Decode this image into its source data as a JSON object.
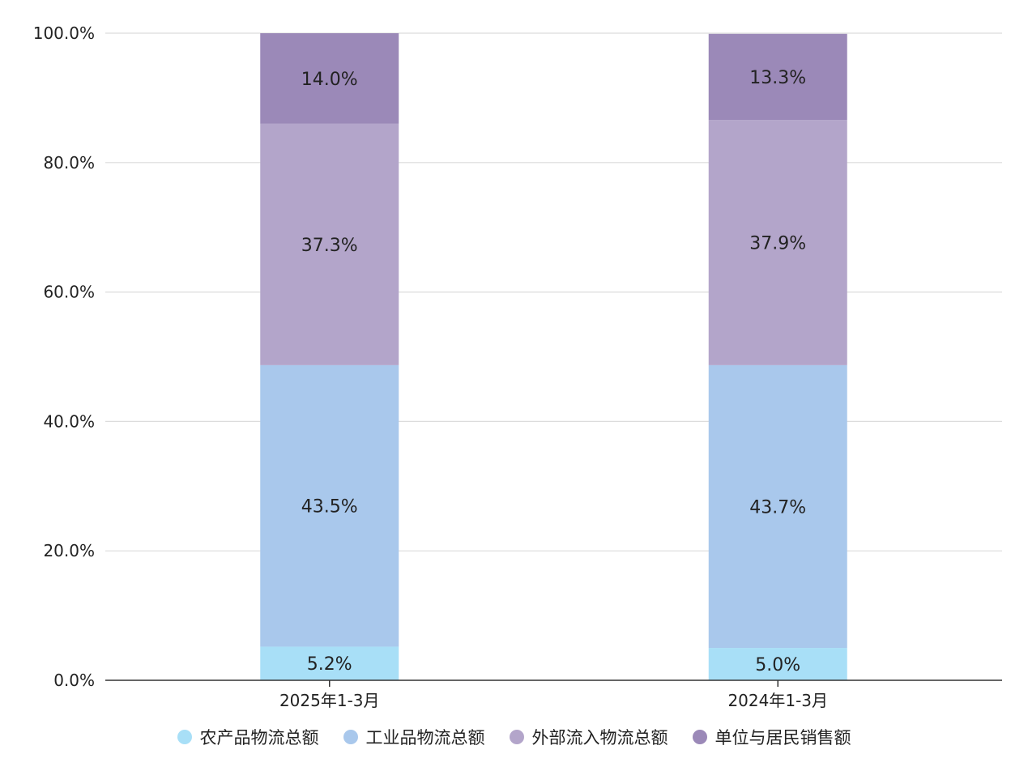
{
  "chart_data": {
    "type": "bar",
    "stacked": true,
    "categories": [
      "2025年1-3月",
      "2024年1-3月"
    ],
    "series": [
      {
        "name": "农产品物流总额",
        "values": [
          5.2,
          5.0
        ],
        "color": "#a8dff7"
      },
      {
        "name": "工业品物流总额",
        "values": [
          43.5,
          43.7
        ],
        "color": "#a9c8ec"
      },
      {
        "name": "外部流入物流总额",
        "values": [
          37.3,
          37.9
        ],
        "color": "#b3a5ca"
      },
      {
        "name": "单位与居民销售额",
        "values": [
          14.0,
          13.3
        ],
        "color": "#9b89b8"
      }
    ],
    "data_labels": [
      [
        "5.2%",
        "5.0%"
      ],
      [
        "43.5%",
        "43.7%"
      ],
      [
        "37.3%",
        "37.9%"
      ],
      [
        "14.0%",
        "13.3%"
      ]
    ],
    "ylim": [
      0,
      100
    ],
    "yticks": [
      "0.0%",
      "20.0%",
      "40.0%",
      "60.0%",
      "80.0%",
      "100.0%"
    ],
    "grid": true,
    "legend_position": "bottom",
    "title": "",
    "xlabel": "",
    "ylabel": ""
  }
}
